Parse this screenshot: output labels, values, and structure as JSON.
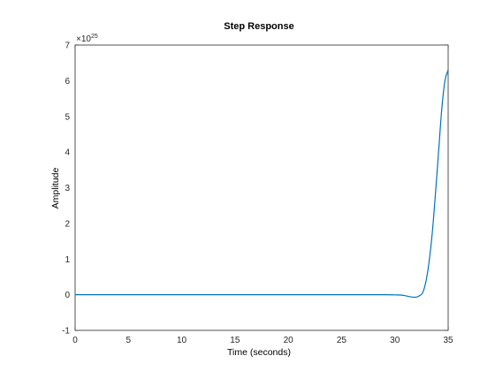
{
  "chart_data": {
    "type": "line",
    "title": "Step Response",
    "xlabel": "Time (seconds)",
    "ylabel": "Amplitude",
    "xlim": [
      0,
      35
    ],
    "ylim": [
      -1,
      7
    ],
    "xticks": [
      0,
      5,
      10,
      15,
      20,
      25,
      30,
      35
    ],
    "yticks": [
      -1,
      0,
      1,
      2,
      3,
      4,
      5,
      6,
      7
    ],
    "y_exponent": {
      "base": "×10",
      "power": "25"
    },
    "grid": false,
    "series_color": "#0072BD",
    "series": [
      {
        "x": [
          0,
          5,
          10,
          15,
          20,
          25,
          29,
          30,
          30.5,
          31,
          31.5,
          32,
          32.3,
          32.6,
          32.9,
          33.2,
          33.5,
          33.8,
          34.1,
          34.4,
          34.7,
          35
        ],
        "values": [
          0,
          0,
          0,
          0,
          0,
          0,
          0,
          -0.005,
          -0.01,
          -0.03,
          -0.06,
          -0.07,
          -0.03,
          0.05,
          0.35,
          0.9,
          1.7,
          2.8,
          4.0,
          5.2,
          6.0,
          6.3
        ]
      }
    ]
  }
}
